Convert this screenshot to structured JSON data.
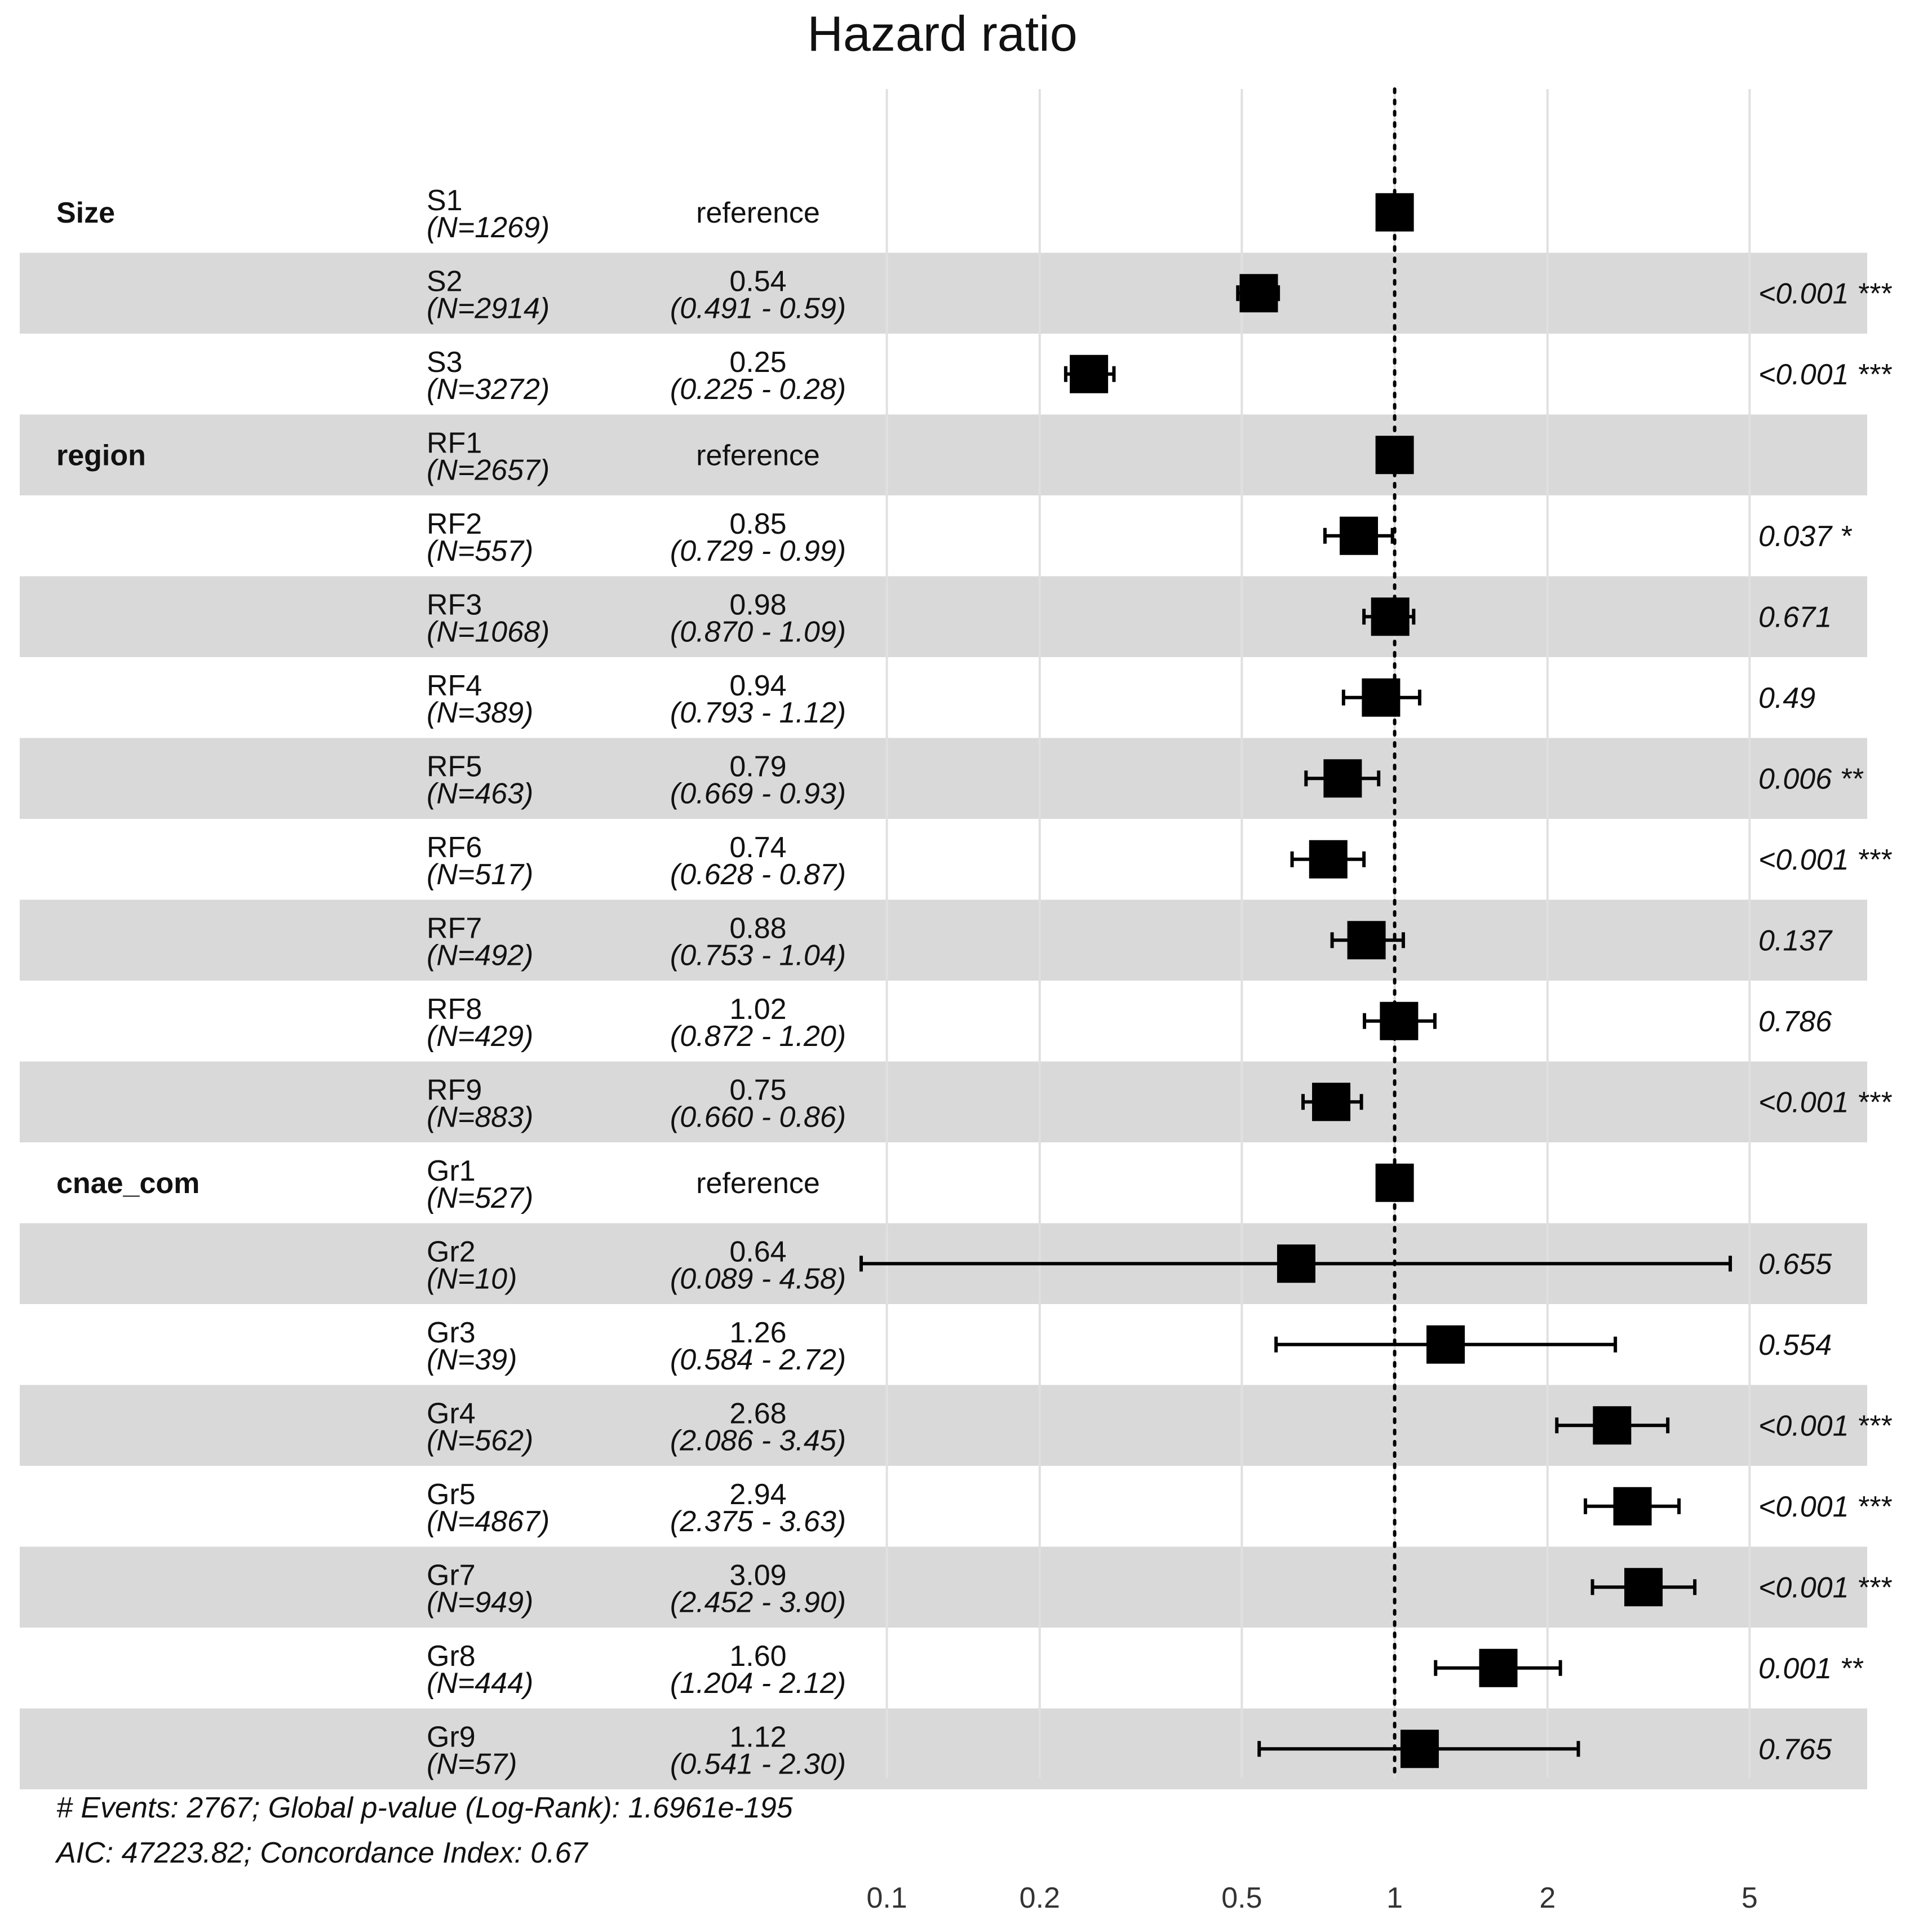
{
  "chart_data": {
    "type": "forest",
    "title": "Hazard ratio",
    "x_scale": "log",
    "xlim": [
      0.085,
      8.5
    ],
    "x_ticks": [
      {
        "value": 0.1,
        "label": "0.1"
      },
      {
        "value": 0.2,
        "label": "0.2"
      },
      {
        "value": 0.5,
        "label": "0.5"
      },
      {
        "value": 1,
        "label": "1"
      },
      {
        "value": 2,
        "label": "2"
      },
      {
        "value": 5,
        "label": "5"
      }
    ],
    "reference_line": 1,
    "rows": [
      {
        "variable": "Size",
        "level": "S1",
        "n": "(N=1269)",
        "hr": 1.0,
        "hr_text": "reference",
        "ci_text": "",
        "lo": null,
        "hi": null,
        "p_text": "",
        "shaded": false
      },
      {
        "variable": "",
        "level": "S2",
        "n": "(N=2914)",
        "hr": 0.54,
        "hr_text": "0.54",
        "ci_text": "(0.491 - 0.59)",
        "lo": 0.491,
        "hi": 0.59,
        "p_text": "<0.001 ***",
        "shaded": true
      },
      {
        "variable": "",
        "level": "S3",
        "n": "(N=3272)",
        "hr": 0.25,
        "hr_text": "0.25",
        "ci_text": "(0.225 - 0.28)",
        "lo": 0.225,
        "hi": 0.28,
        "p_text": "<0.001 ***",
        "shaded": false
      },
      {
        "variable": "region",
        "level": "RF1",
        "n": "(N=2657)",
        "hr": 1.0,
        "hr_text": "reference",
        "ci_text": "",
        "lo": null,
        "hi": null,
        "p_text": "",
        "shaded": true
      },
      {
        "variable": "",
        "level": "RF2",
        "n": "(N=557)",
        "hr": 0.85,
        "hr_text": "0.85",
        "ci_text": "(0.729 - 0.99)",
        "lo": 0.729,
        "hi": 0.99,
        "p_text": "0.037 *",
        "shaded": false
      },
      {
        "variable": "",
        "level": "RF3",
        "n": "(N=1068)",
        "hr": 0.98,
        "hr_text": "0.98",
        "ci_text": "(0.870 - 1.09)",
        "lo": 0.87,
        "hi": 1.09,
        "p_text": "0.671",
        "shaded": true
      },
      {
        "variable": "",
        "level": "RF4",
        "n": "(N=389)",
        "hr": 0.94,
        "hr_text": "0.94",
        "ci_text": "(0.793 - 1.12)",
        "lo": 0.793,
        "hi": 1.12,
        "p_text": "0.49",
        "shaded": false
      },
      {
        "variable": "",
        "level": "RF5",
        "n": "(N=463)",
        "hr": 0.79,
        "hr_text": "0.79",
        "ci_text": "(0.669 - 0.93)",
        "lo": 0.669,
        "hi": 0.93,
        "p_text": "0.006 **",
        "shaded": true
      },
      {
        "variable": "",
        "level": "RF6",
        "n": "(N=517)",
        "hr": 0.74,
        "hr_text": "0.74",
        "ci_text": "(0.628 - 0.87)",
        "lo": 0.628,
        "hi": 0.87,
        "p_text": "<0.001 ***",
        "shaded": false
      },
      {
        "variable": "",
        "level": "RF7",
        "n": "(N=492)",
        "hr": 0.88,
        "hr_text": "0.88",
        "ci_text": "(0.753 - 1.04)",
        "lo": 0.753,
        "hi": 1.04,
        "p_text": "0.137",
        "shaded": true
      },
      {
        "variable": "",
        "level": "RF8",
        "n": "(N=429)",
        "hr": 1.02,
        "hr_text": "1.02",
        "ci_text": "(0.872 - 1.20)",
        "lo": 0.872,
        "hi": 1.2,
        "p_text": "0.786",
        "shaded": false
      },
      {
        "variable": "",
        "level": "RF9",
        "n": "(N=883)",
        "hr": 0.75,
        "hr_text": "0.75",
        "ci_text": "(0.660 - 0.86)",
        "lo": 0.66,
        "hi": 0.86,
        "p_text": "<0.001 ***",
        "shaded": true
      },
      {
        "variable": "cnae_com",
        "level": "Gr1",
        "n": "(N=527)",
        "hr": 1.0,
        "hr_text": "reference",
        "ci_text": "",
        "lo": null,
        "hi": null,
        "p_text": "",
        "shaded": false
      },
      {
        "variable": "",
        "level": "Gr2",
        "n": "(N=10)",
        "hr": 0.64,
        "hr_text": "0.64",
        "ci_text": "(0.089 - 4.58)",
        "lo": 0.089,
        "hi": 4.58,
        "p_text": "0.655",
        "shaded": true
      },
      {
        "variable": "",
        "level": "Gr3",
        "n": "(N=39)",
        "hr": 1.26,
        "hr_text": "1.26",
        "ci_text": "(0.584 - 2.72)",
        "lo": 0.584,
        "hi": 2.72,
        "p_text": "0.554",
        "shaded": false
      },
      {
        "variable": "",
        "level": "Gr4",
        "n": "(N=562)",
        "hr": 2.68,
        "hr_text": "2.68",
        "ci_text": "(2.086 - 3.45)",
        "lo": 2.086,
        "hi": 3.45,
        "p_text": "<0.001 ***",
        "shaded": true
      },
      {
        "variable": "",
        "level": "Gr5",
        "n": "(N=4867)",
        "hr": 2.94,
        "hr_text": "2.94",
        "ci_text": "(2.375 - 3.63)",
        "lo": 2.375,
        "hi": 3.63,
        "p_text": "<0.001 ***",
        "shaded": false
      },
      {
        "variable": "",
        "level": "Gr7",
        "n": "(N=949)",
        "hr": 3.09,
        "hr_text": "3.09",
        "ci_text": "(2.452 - 3.90)",
        "lo": 2.452,
        "hi": 3.9,
        "p_text": "<0.001 ***",
        "shaded": true
      },
      {
        "variable": "",
        "level": "Gr8",
        "n": "(N=444)",
        "hr": 1.6,
        "hr_text": "1.60",
        "ci_text": "(1.204 - 2.12)",
        "lo": 1.204,
        "hi": 2.12,
        "p_text": "0.001 **",
        "shaded": false
      },
      {
        "variable": "",
        "level": "Gr9",
        "n": "(N=57)",
        "hr": 1.12,
        "hr_text": "1.12",
        "ci_text": "(0.541 - 2.30)",
        "lo": 0.541,
        "hi": 2.3,
        "p_text": "0.765",
        "shaded": true
      }
    ],
    "footer": [
      "# Events: 2767; Global p-value (Log-Rank): 1.6961e-195",
      "AIC: 47223.82; Concordance Index: 0.67"
    ]
  },
  "colors": {
    "shade": "#d9d9d9",
    "grid": "#e0e0e0",
    "mark": "#000000",
    "text": "#111111"
  }
}
